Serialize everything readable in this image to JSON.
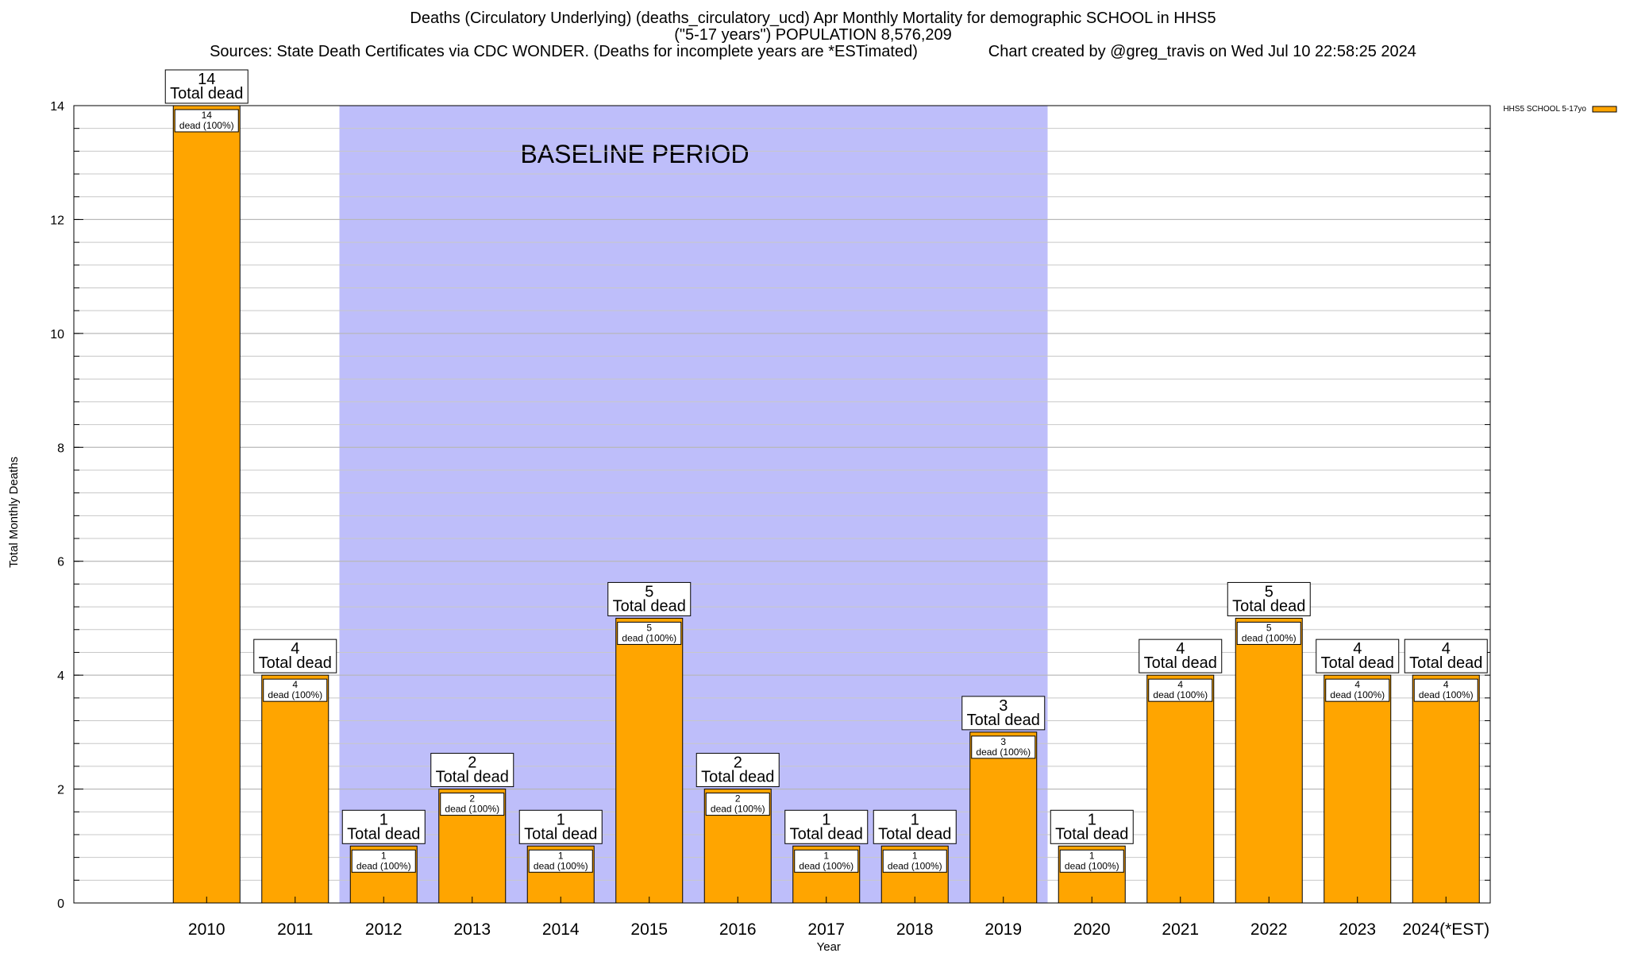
{
  "header": {
    "title_line1": "Deaths (Circulatory Underlying) (deaths_circulatory_ucd) Apr Monthly Mortality for demographic SCHOOL in HHS5",
    "title_line2": "(\"5-17 years\") POPULATION 8,576,209",
    "title_line3": "Sources: State Death Certificates via CDC WONDER. (Deaths for incomplete years are *ESTimated)                Chart created by @greg_travis on Wed Jul 10 22:58:25 2024"
  },
  "chart_data": {
    "type": "bar",
    "xlabel": "Year",
    "ylabel": "Total Monthly Deaths",
    "ylim": [
      0,
      14
    ],
    "yticks": [
      0,
      2,
      4,
      6,
      8,
      10,
      12,
      14
    ],
    "grid": true,
    "legend": {
      "placement": "top-right",
      "entries": [
        "HHS5 SCHOOL 5-17yo"
      ]
    },
    "categories": [
      "2010",
      "2011",
      "2012",
      "2013",
      "2014",
      "2015",
      "2016",
      "2017",
      "2018",
      "2019",
      "2020",
      "2021",
      "2022",
      "2023",
      "2024(*EST)"
    ],
    "series": [
      {
        "name": "HHS5 SCHOOL 5-17yo",
        "color": "#FFA500",
        "values": [
          14,
          4,
          1,
          2,
          1,
          5,
          2,
          1,
          1,
          3,
          1,
          4,
          5,
          4,
          4
        ]
      }
    ],
    "bar_top_label_suffix": "Total dead",
    "bar_inner_label_suffix": "dead (100%)",
    "annotation": {
      "text": "BASELINE PERIOD",
      "span": [
        "2012",
        "2019"
      ],
      "color": "#BEBEFA"
    }
  }
}
